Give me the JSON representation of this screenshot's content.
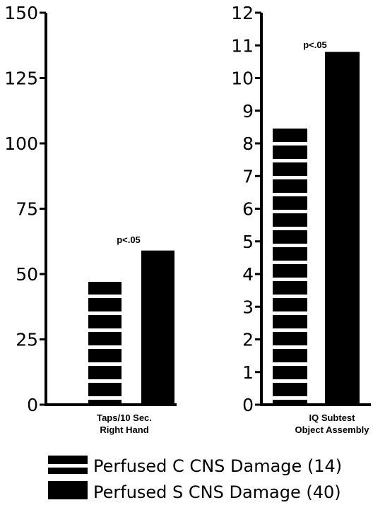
{
  "chart_data": [
    {
      "type": "bar",
      "categories": [
        "Taps/10 Sec. Right Hand"
      ],
      "category_lines": [
        "Taps/10 Sec.",
        "Right Hand"
      ],
      "series": [
        {
          "name": "Perfused C CNS Damage (14)",
          "values": [
            47
          ]
        },
        {
          "name": "Perfused S CNS Damage (40)",
          "values": [
            59
          ]
        }
      ],
      "significance": "p<.05",
      "yticks": [
        "0",
        "25",
        "50",
        "75",
        "100",
        "125",
        "150"
      ],
      "ylim": [
        0,
        150
      ],
      "xlabel": "",
      "ylabel": "",
      "grid": false
    },
    {
      "type": "bar",
      "categories": [
        "IQ Subtest Object Assembly"
      ],
      "category_lines": [
        "IQ Subtest",
        "Object Assembly"
      ],
      "series": [
        {
          "name": "Perfused C CNS Damage (14)",
          "values": [
            8.5
          ]
        },
        {
          "name": "Perfused S CNS Damage (40)",
          "values": [
            10.8
          ]
        }
      ],
      "significance": "p<.05",
      "yticks": [
        "0",
        "1",
        "2",
        "3",
        "4",
        "5",
        "6",
        "7",
        "8",
        "9",
        "10",
        "11",
        "12"
      ],
      "ylim": [
        0,
        12
      ],
      "xlabel": "",
      "ylabel": "",
      "grid": false
    }
  ],
  "legend": [
    {
      "text": "Perfused C CNS Damage (14)",
      "pattern": "striped"
    },
    {
      "text": "Perfused S CNS Damage (40)",
      "pattern": "solid"
    }
  ],
  "colors": {
    "ink": "#000000",
    "paper": "#ffffff"
  }
}
